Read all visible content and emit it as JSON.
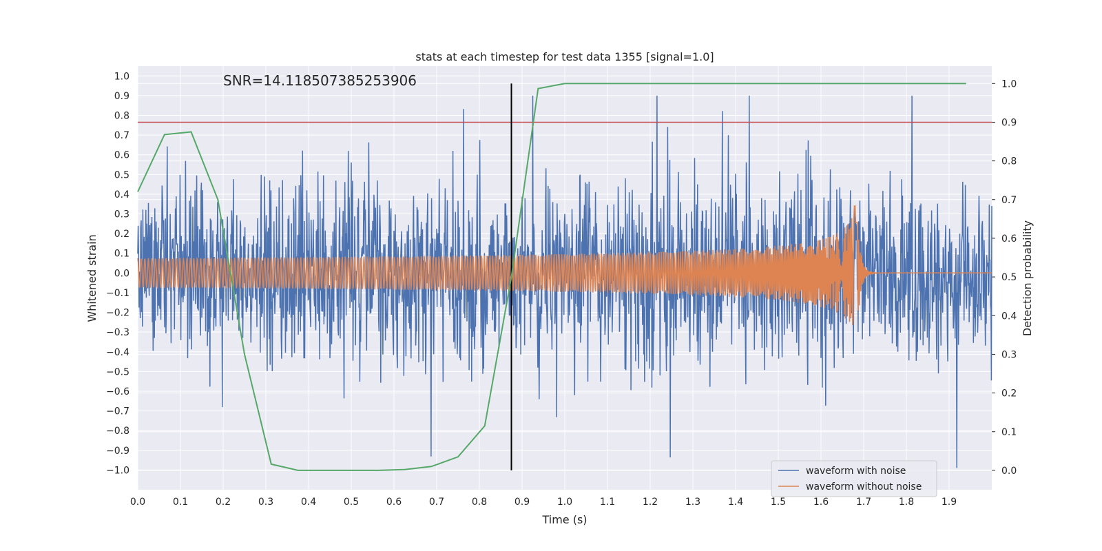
{
  "chart_data": {
    "type": "line",
    "title": "stats at each timestep for test data 1355 [signal=1.0]",
    "annotation": "SNR=14.118507385253906",
    "xlabel": "Time (s)",
    "ylabel_left": "Whitened strain",
    "ylabel_right": "Detection probability",
    "xlim": [
      0.0,
      2.0
    ],
    "ylim_left": [
      -1.1,
      1.05
    ],
    "ylim_right": [
      -0.05,
      1.045
    ],
    "x_ticks": [
      "0.0",
      "0.1",
      "0.2",
      "0.3",
      "0.4",
      "0.5",
      "0.6",
      "0.7",
      "0.8",
      "0.9",
      "1.0",
      "1.1",
      "1.2",
      "1.3",
      "1.4",
      "1.5",
      "1.6",
      "1.7",
      "1.8",
      "1.9"
    ],
    "y_ticks_left": [
      "1.0",
      "0.9",
      "0.8",
      "0.7",
      "0.6",
      "0.5",
      "0.4",
      "0.3",
      "0.2",
      "0.1",
      "0.0",
      "−0.1",
      "−0.2",
      "−0.3",
      "−0.4",
      "−0.5",
      "−0.6",
      "−0.7",
      "−0.8",
      "−0.9",
      "−1.0"
    ],
    "y_ticks_right": [
      "1.0",
      "0.9",
      "0.8",
      "0.7",
      "0.6",
      "0.5",
      "0.4",
      "0.3",
      "0.2",
      "0.1",
      "0.0"
    ],
    "threshold": 0.9,
    "marker_time": 0.875,
    "detection_probability": {
      "name": "Detection probability",
      "x": [
        0.0,
        0.0625,
        0.125,
        0.1875,
        0.25,
        0.3125,
        0.375,
        0.4375,
        0.5,
        0.5625,
        0.625,
        0.6875,
        0.75,
        0.8125,
        0.875,
        0.9375,
        1.0,
        1.0625,
        1.125,
        1.1875,
        1.25,
        1.3125,
        1.375,
        1.4375,
        1.5,
        1.5625,
        1.625,
        1.6875,
        1.75,
        1.8125,
        1.875,
        1.94
      ],
      "y": [
        0.72,
        0.868,
        0.875,
        0.7,
        0.3,
        0.016,
        0.0,
        0.0,
        0.0,
        0.0,
        0.002,
        0.01,
        0.035,
        0.115,
        0.5,
        0.987,
        1.0,
        1.0,
        1.0,
        1.0,
        1.0,
        1.0,
        1.0,
        1.0,
        1.0,
        1.0,
        1.0,
        1.0,
        1.0,
        1.0,
        1.0,
        1.0
      ]
    },
    "series": [
      {
        "name": "waveform with noise",
        "color": "#4c72b0"
      },
      {
        "name": "waveform without noise",
        "color": "#dd8452"
      }
    ],
    "colors": {
      "probability": "#55a868",
      "threshold": "#c44e52",
      "marker": "#000000",
      "plot_bg": "#eaeaf2",
      "grid": "#ffffff"
    }
  }
}
